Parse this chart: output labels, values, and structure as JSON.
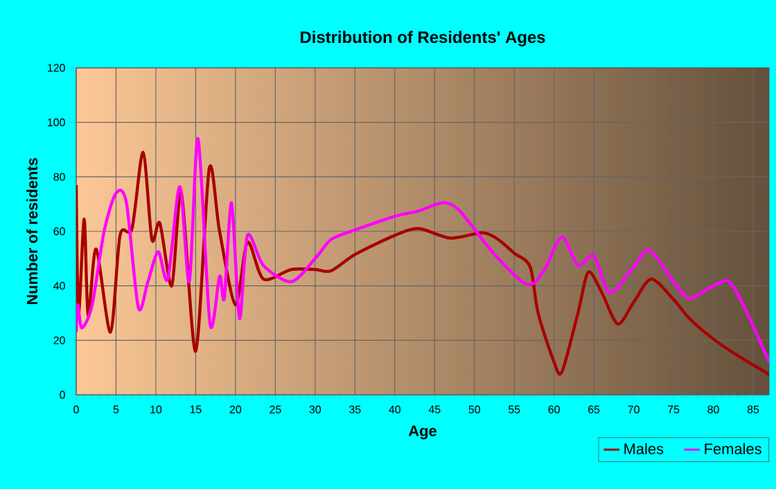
{
  "chart_data": {
    "type": "line",
    "title": "Distribution of Residents' Ages",
    "xlabel": "Age",
    "ylabel": "Number of residents",
    "xlim": [
      0,
      87
    ],
    "ylim": [
      0,
      120
    ],
    "xticks": [
      0,
      5,
      10,
      15,
      20,
      25,
      30,
      35,
      40,
      45,
      50,
      55,
      60,
      65,
      70,
      75,
      80,
      85
    ],
    "yticks": [
      0,
      20,
      40,
      60,
      80,
      100,
      120
    ],
    "grid": true,
    "legend": "bottom right",
    "marker": "none",
    "line_style": "solid",
    "series": [
      {
        "name": "Males",
        "color": "#a80000",
        "x": [
          0,
          0.3,
          1,
          1.5,
          2.5,
          4.3,
          5.5,
          7,
          8.4,
          9.5,
          10.5,
          12,
          13.2,
          15,
          16.7,
          18,
          20,
          21.5,
          23.5,
          27,
          30,
          32,
          35,
          40,
          43,
          47,
          51,
          53,
          55,
          57,
          58,
          60,
          61,
          63,
          64.3,
          66,
          68,
          70,
          72.2,
          75,
          77,
          80,
          83,
          87
        ],
        "values": [
          77,
          30,
          64.5,
          29,
          53.5,
          23,
          58.5,
          61,
          89,
          57,
          63,
          40,
          74,
          16,
          83,
          60,
          33,
          56,
          42.5,
          46,
          46,
          45.5,
          51.5,
          58.5,
          61,
          57.5,
          59.5,
          57,
          52,
          47,
          30,
          12,
          8.5,
          30,
          45,
          37.5,
          26,
          34,
          42.5,
          35,
          28,
          20.5,
          14.5,
          7.5
        ]
      },
      {
        "name": "Females",
        "color": "#ff00ff",
        "x": [
          0,
          0.2,
          0.7,
          2,
          3.5,
          5,
          6.3,
          7.8,
          9,
          10.3,
          11.5,
          13,
          14.2,
          15.3,
          16.8,
          18,
          18.6,
          19.5,
          20.5,
          21.5,
          23.5,
          27,
          30,
          32,
          35,
          40,
          43,
          46,
          48,
          51,
          53,
          56,
          57.5,
          59,
          61,
          63,
          65,
          67,
          70,
          72,
          75,
          77,
          80,
          82,
          84,
          87
        ],
        "values": [
          23,
          33,
          24.5,
          33,
          60,
          74,
          70.5,
          32,
          41.5,
          52.5,
          42.5,
          76.5,
          41.5,
          94,
          26,
          43.5,
          35.5,
          70.5,
          28,
          58.5,
          47.5,
          41.5,
          50,
          57,
          60.5,
          65.5,
          67.5,
          70.5,
          68,
          57,
          50,
          41.5,
          41,
          47,
          58,
          47.5,
          51,
          37.5,
          47,
          53,
          41.5,
          35.5,
          40,
          41.5,
          31.5,
          12
        ]
      }
    ]
  }
}
